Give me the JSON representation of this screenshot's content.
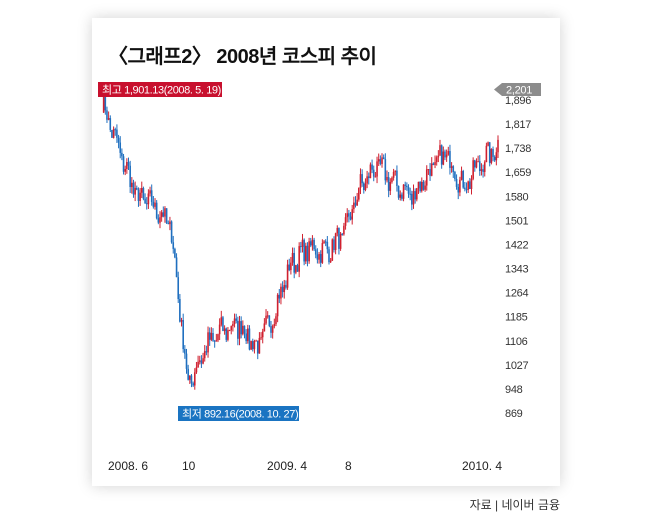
{
  "title": "〈그래프2〉 2008년 코스피 추이",
  "source": "자료 | 네이버 금융",
  "colors": {
    "up": "#d0202f",
    "down": "#1f6fbf",
    "high_badge": "#c8102e",
    "low_badge": "#1a74c2",
    "current_badge": "#8c8c8c"
  },
  "chart_data": {
    "type": "line",
    "title": "〈그래프2〉 2008년 코스피 추이",
    "xlabel": "",
    "ylabel": "",
    "ylim": [
      869,
      2201
    ],
    "grid": false,
    "x_ticks": [
      "2008. 6",
      "10",
      "2009. 4",
      "8",
      "2010. 4"
    ],
    "y_ticks": [
      2201,
      1896,
      1817,
      1738,
      1659,
      1580,
      1501,
      1422,
      1343,
      1264,
      1185,
      1106,
      1027,
      948,
      869
    ],
    "x": [
      "2008-05",
      "2008-06",
      "2008-07",
      "2008-08",
      "2008-09",
      "2008-10",
      "2008-11",
      "2008-12",
      "2009-01",
      "2009-02",
      "2009-03",
      "2009-04",
      "2009-05",
      "2009-06",
      "2009-07",
      "2009-08",
      "2009-09",
      "2009-10",
      "2009-11",
      "2009-12",
      "2010-01",
      "2010-02",
      "2010-03",
      "2010-04"
    ],
    "series": [
      {
        "values": [
          1890,
          1730,
          1580,
          1550,
          1480,
          960,
          1080,
          1140,
          1160,
          1080,
          1200,
          1360,
          1410,
          1400,
          1450,
          1610,
          1680,
          1620,
          1580,
          1660,
          1720,
          1610,
          1690,
          1740
        ]
      }
    ],
    "annotations": [
      {
        "label": "최고 1,901.13(2008. 5. 19)",
        "value": 1901.13
      },
      {
        "label": "최저 892.16(2008. 10. 27)",
        "value": 892.16
      },
      {
        "label": "2,201",
        "value": 2201
      }
    ]
  }
}
